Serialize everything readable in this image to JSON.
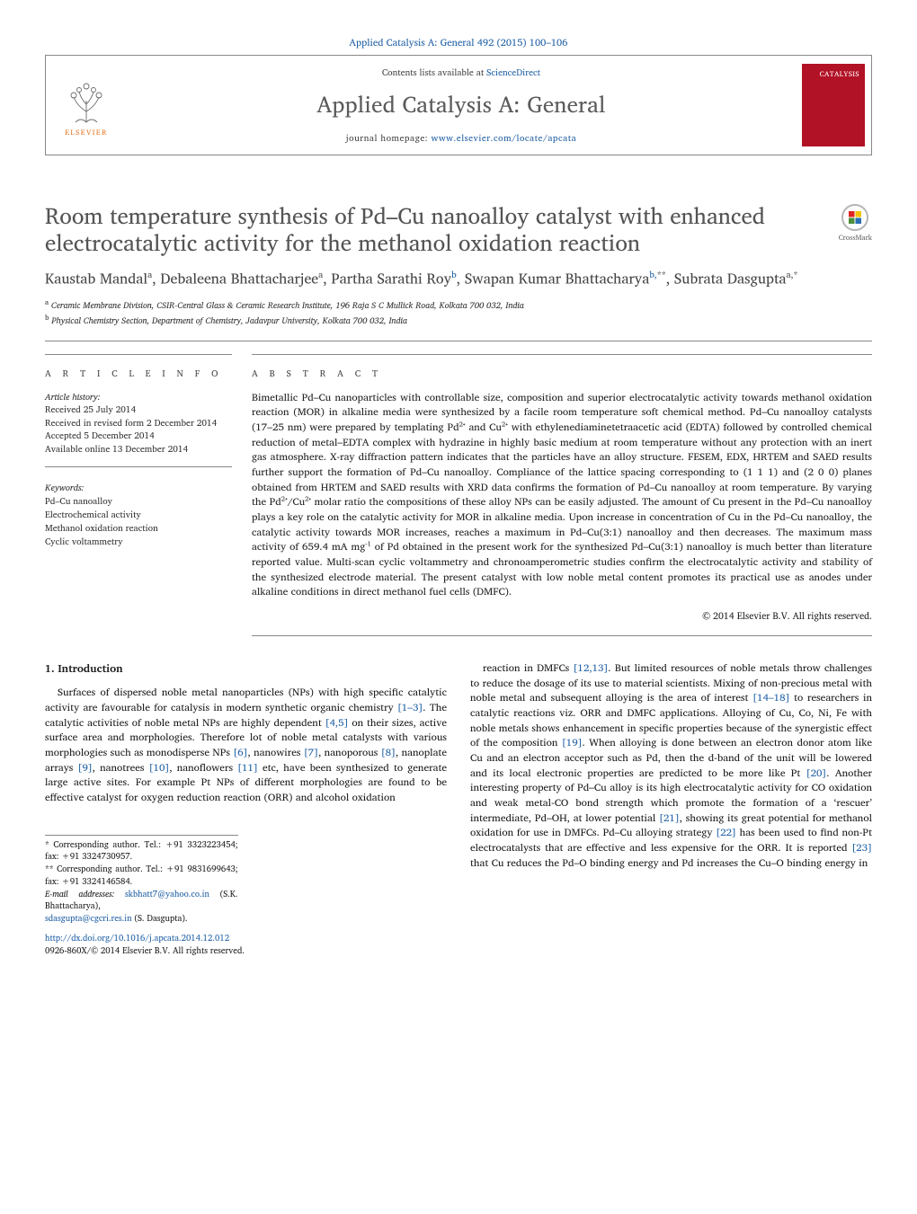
{
  "top_citation": {
    "prefix": "Applied Catalysis A: General",
    "vol": "492 (2015) 100–106"
  },
  "header": {
    "contents_prefix": "Contents lists available at ",
    "contents_link": "ScienceDirect",
    "journal_name": "Applied Catalysis A: General",
    "homepage_prefix": "journal homepage: ",
    "homepage_url": "www.elsevier.com/locate/apcata",
    "publisher": "ELSEVIER",
    "cover_text": "CATALYSIS"
  },
  "crossmark_label": "CrossMark",
  "title": "Room temperature synthesis of Pd–Cu nanoalloy catalyst with enhanced electrocatalytic activity for the methanol oxidation reaction",
  "authors_html": "Kaustab Mandal<sup>a</sup>, Debaleena Bhattacharjee<sup>a</sup>, Partha Sarathi Roy<sup class='sup-link'>b</sup>, Swapan Kumar Bhattacharya<sup class='sup-link'>b,</sup><sup>**</sup>, Subrata Dasgupta<sup>a,</sup><sup>*</sup>",
  "affiliations": [
    {
      "sup": "a",
      "text": "Ceramic Membrane Division, CSIR-Central Glass & Ceramic Research Institute, 196 Raja S C Mullick Road, Kolkata 700 032, India"
    },
    {
      "sup": "b",
      "text": "Physical Chemistry Section, Department of Chemistry, Jadavpur University, Kolkata 700 032, India"
    }
  ],
  "article_info_head": "a r t i c l e   i n f o",
  "abstract_head": "a b s t r a c t",
  "history": {
    "label": "Article history:",
    "received": "Received 25 July 2014",
    "revised": "Received in revised form 2 December 2014",
    "accepted": "Accepted 5 December 2014",
    "online": "Available online 13 December 2014"
  },
  "keywords_label": "Keywords:",
  "keywords": [
    "Pd–Cu nanoalloy",
    "Electrochemical activity",
    "Methanol oxidation reaction",
    "Cyclic voltammetry"
  ],
  "abstract": "Bimetallic Pd–Cu nanoparticles with controllable size, composition and superior electrocatalytic activity towards methanol oxidation reaction (MOR) in alkaline media were synthesized by a facile room temperature soft chemical method. Pd–Cu nanoalloy catalysts (17–25 nm) were prepared by templating Pd²⁺ and Cu²⁺ with ethylenediaminetetraacetic acid (EDTA) followed by controlled chemical reduction of metal–EDTA complex with hydrazine in highly basic medium at room temperature without any protection with an inert gas atmosphere. X-ray diffraction pattern indicates that the particles have an alloy structure. FESEM, EDX, HRTEM and SAED results further support the formation of Pd–Cu nanoalloy. Compliance of the lattice spacing corresponding to (1 1 1) and (2 0 0) planes obtained from HRTEM and SAED results with XRD data confirms the formation of Pd–Cu nanoalloy at room temperature. By varying the Pd²⁺/Cu²⁺ molar ratio the compositions of these alloy NPs can be easily adjusted. The amount of Cu present in the Pd–Cu nanoalloy plays a key role on the catalytic activity for MOR in alkaline media. Upon increase in concentration of Cu in the Pd–Cu nanoalloy, the catalytic activity towards MOR increases, reaches a maximum in Pd–Cu(3:1) nanoalloy and then decreases. The maximum mass activity of 659.4 mA mg⁻¹ of Pd obtained in the present work for the synthesized Pd–Cu(3:1) nanoalloy is much better than literature reported value. Multi-scan cyclic voltammetry and chronoamperometric studies confirm the electrocatalytic activity and stability of the synthesized electrode material. The present catalyst with low noble metal content promotes its practical use as anodes under alkaline conditions in direct methanol fuel cells (DMFC).",
  "copyright": "© 2014 Elsevier B.V. All rights reserved.",
  "body": {
    "heading": "1. Introduction",
    "col1": "Surfaces of dispersed noble metal nanoparticles (NPs) with high specific catalytic activity are favourable for catalysis in modern synthetic organic chemistry <span class='cite'>[1–3]</span>. The catalytic activities of noble metal NPs are highly dependent <span class='cite'>[4,5]</span> on their sizes, active surface area and morphologies. Therefore lot of noble metal catalysts with various morphologies such as monodisperse NPs <span class='cite'>[6]</span>, nanowires <span class='cite'>[7]</span>, nanoporous <span class='cite'>[8]</span>, nanoplate arrays <span class='cite'>[9]</span>, nanotrees <span class='cite'>[10]</span>, nanoflowers <span class='cite'>[11]</span> etc, have been synthesized to generate large active sites. For example Pt NPs of different morphologies are found to be effective catalyst for oxygen reduction reaction (ORR) and alcohol oxidation",
    "col2": "reaction in DMFCs <span class='cite'>[12,13]</span>. But limited resources of noble metals throw challenges to reduce the dosage of its use to material scientists. Mixing of non-precious metal with noble metal and subsequent alloying is the area of interest <span class='cite'>[14–18]</span> to researchers in catalytic reactions viz. ORR and DMFC applications. Alloying of Cu, Co, Ni, Fe with noble metals shows enhancement in specific properties because of the synergistic effect of the composition <span class='cite'>[19]</span>. When alloying is done between an electron donor atom like Cu and an electron acceptor such as Pd, then the d-band of the unit will be lowered and its local electronic properties are predicted to be more like Pt <span class='cite'>[20]</span>. Another interesting property of Pd–Cu alloy is its high electrocatalytic activity for CO oxidation and weak metal-CO bond strength which promote the formation of a ‘rescuer’ intermediate, Pd–OH, at lower potential <span class='cite'>[21]</span>, showing its great potential for methanol oxidation for use in DMFCs. Pd–Cu alloying strategy <span class='cite'>[22]</span> has been used to find non-Pt electrocatalysts that are effective and less expensive for the ORR. It is reported <span class='cite'>[23]</span> that Cu reduces the Pd–O binding energy and Pd increases the Cu–O binding energy in"
  },
  "footnotes": {
    "corr1": "* Corresponding author. Tel.: +91 3323223454; fax: +91 3324730957.",
    "corr2": "** Corresponding author. Tel.: +91 9831699643; fax: +91 3324146584.",
    "emails_label": "E-mail addresses:",
    "email1": "skbhatt7@yahoo.co.in",
    "email1_name": "(S.K. Bhattacharya),",
    "email2": "sdasgupta@cgcri.res.in",
    "email2_name": "(S. Dasgupta)."
  },
  "doi": {
    "url": "http://dx.doi.org/10.1016/j.apcata.2014.12.012",
    "line2": "0926-860X/© 2014 Elsevier B.V. All rights reserved."
  },
  "colors": {
    "link": "#2060a5",
    "publisher_orange": "#e77422",
    "cover_red": "#b11226",
    "text_gray": "#545454"
  }
}
